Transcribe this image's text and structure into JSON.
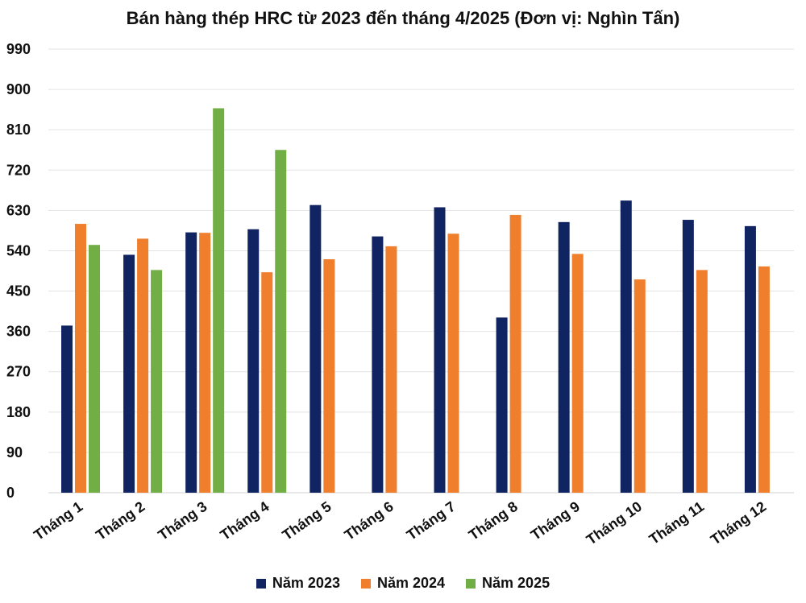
{
  "chart_data": {
    "type": "bar",
    "title": "Bán hàng thép HRC từ 2023 đến tháng 4/2025 (Đơn vị: Nghìn Tấn)",
    "categories": [
      "Tháng 1",
      "Tháng 2",
      "Tháng 3",
      "Tháng 4",
      "Tháng 5",
      "Tháng 6",
      "Tháng 7",
      "Tháng 8",
      "Tháng 9",
      "Tháng 10",
      "Tháng 11",
      "Tháng 12"
    ],
    "series": [
      {
        "name": "Năm 2023",
        "color": "#0F2460",
        "values": [
          373,
          531,
          581,
          588,
          642,
          572,
          637,
          391,
          604,
          652,
          609,
          595
        ]
      },
      {
        "name": "Năm 2024",
        "color": "#F07F2D",
        "values": [
          600,
          567,
          580,
          492,
          521,
          550,
          578,
          620,
          533,
          476,
          497,
          505
        ]
      },
      {
        "name": "Năm 2025",
        "color": "#72AE46",
        "values": [
          553,
          497,
          858,
          765,
          null,
          null,
          null,
          null,
          null,
          null,
          null,
          null
        ]
      }
    ],
    "y_ticks": [
      "0",
      "90",
      "180",
      "270",
      "360",
      "450",
      "540",
      "630",
      "720",
      "810",
      "900",
      "990"
    ],
    "ylim": [
      0,
      990
    ],
    "grid": true,
    "legend_position": "bottom"
  }
}
